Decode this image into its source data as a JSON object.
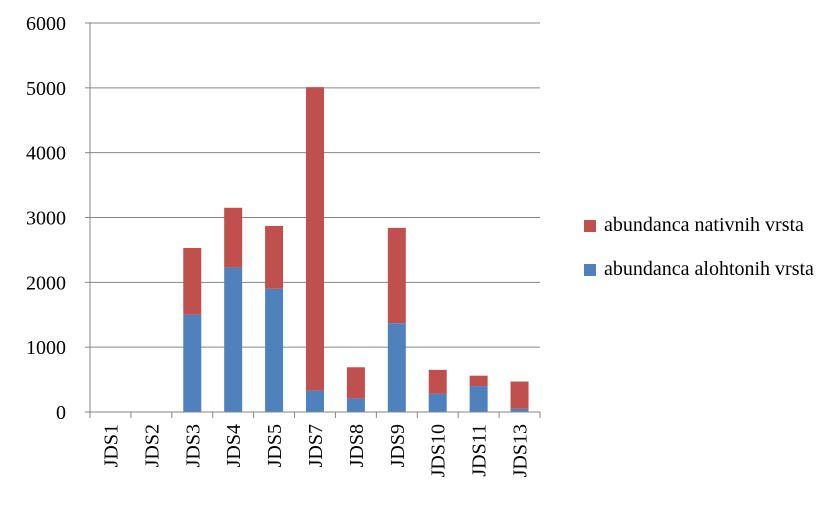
{
  "chart_data": {
    "type": "stacked_bar",
    "categories": [
      "JDS1",
      "JDS2",
      "JDS3",
      "JDS4",
      "JDS5",
      "JDS7",
      "JDS8",
      "JDS9",
      "JDS10",
      "JDS11",
      "JDS13"
    ],
    "series": [
      {
        "name": "abundanca alohtonih vrsta",
        "color": "#4f81bd",
        "values": [
          0,
          0,
          1500,
          2230,
          1900,
          330,
          210,
          1370,
          280,
          400,
          50
        ]
      },
      {
        "name": "abundanca nativnih vrsta",
        "color": "#c0504d",
        "values": [
          0,
          0,
          1030,
          920,
          970,
          4680,
          480,
          1470,
          370,
          160,
          420
        ]
      }
    ],
    "ylim": [
      0,
      6000
    ],
    "yticks": [
      0,
      1000,
      2000,
      3000,
      4000,
      5000,
      6000
    ],
    "grid": true
  }
}
